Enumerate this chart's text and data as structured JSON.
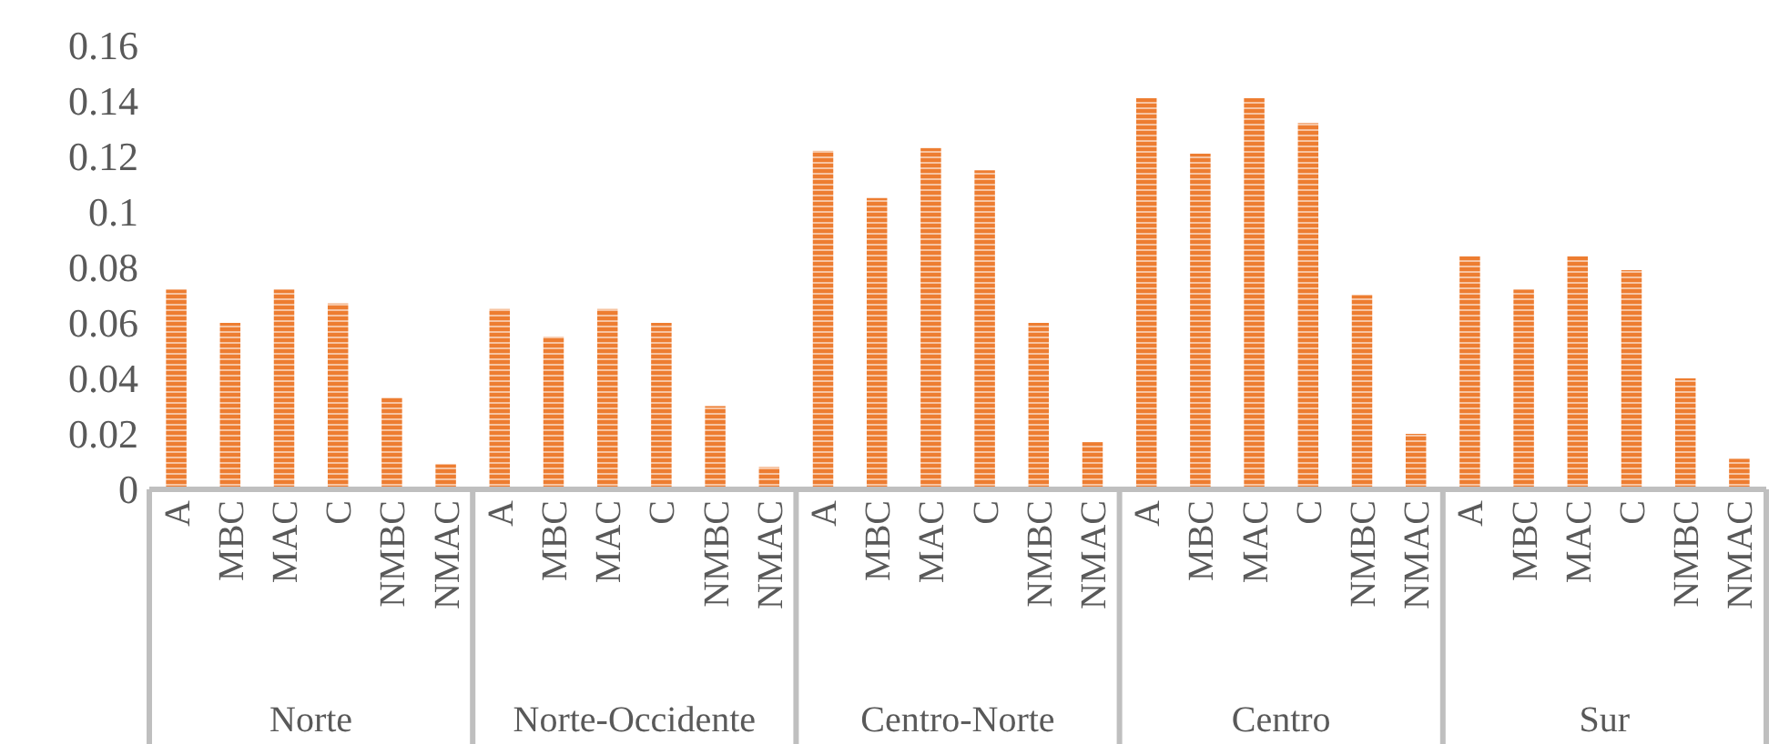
{
  "chart_data": {
    "type": "bar",
    "categories": [
      "A",
      "MBC",
      "MAC",
      "C",
      "NMBC",
      "NMAC",
      "A",
      "MBC",
      "MAC",
      "C",
      "NMBC",
      "NMAC",
      "A",
      "MBC",
      "MAC",
      "C",
      "NMBC",
      "NMAC",
      "A",
      "MBC",
      "MAC",
      "C",
      "NMBC",
      "NMAC",
      "A",
      "MBC",
      "MAC",
      "C",
      "NMBC",
      "NMAC"
    ],
    "values": [
      0.072,
      0.06,
      0.072,
      0.067,
      0.033,
      0.009,
      0.065,
      0.055,
      0.065,
      0.06,
      0.03,
      0.008,
      0.122,
      0.105,
      0.123,
      0.115,
      0.06,
      0.017,
      0.141,
      0.121,
      0.141,
      0.132,
      0.07,
      0.02,
      0.084,
      0.072,
      0.084,
      0.079,
      0.04,
      0.011
    ],
    "color": "#ed7d31",
    "ylim": [
      0,
      0.16
    ],
    "yticks": [
      0,
      0.02,
      0.04,
      0.06,
      0.08,
      {
        "value": 0.1,
        "label": "0.1"
      },
      0.12,
      0.14,
      0.16
    ],
    "grid": false,
    "annotations": [
      "Norte",
      "Norte-Occidente",
      "Centro-Norte",
      "Centro",
      "Sur"
    ]
  }
}
